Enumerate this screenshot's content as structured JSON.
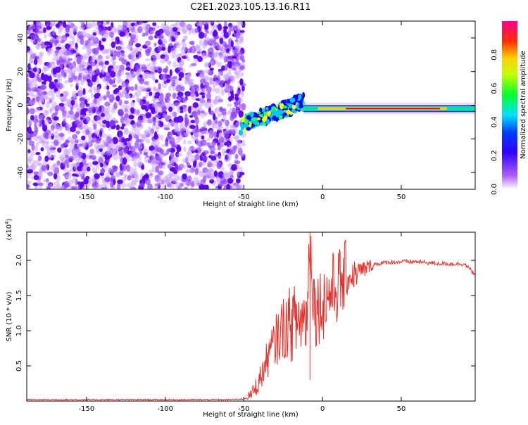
{
  "title": "C2E1.2023.105.13.16.R11",
  "colorbar": {
    "label": "Normalized spectral amplitude",
    "ticks": [
      "0.0",
      "0.2",
      "0.4",
      "0.6",
      "0.8"
    ],
    "tick_values": [
      0.0,
      0.2,
      0.4,
      0.6,
      0.8
    ],
    "range": [
      0,
      1
    ],
    "colors": [
      "#ffffff",
      "#8a00ff",
      "#0000ff",
      "#00d8ff",
      "#00ff30",
      "#ffff00",
      "#ff8000",
      "#ff0000",
      "#ff0090"
    ]
  },
  "chart_data": [
    {
      "type": "heatmap",
      "xlabel": "Height of straight line (km)",
      "ylabel": "Frequency (Hz)",
      "xlim": [
        -188,
        97
      ],
      "ylim": [
        -50,
        50
      ],
      "x_ticks": [
        "-150",
        "-100",
        "-50",
        "0",
        "50"
      ],
      "x_tick_values": [
        -150,
        -100,
        -50,
        0,
        50
      ],
      "y_ticks": [
        "-40",
        "-20",
        "0",
        "20",
        "40"
      ],
      "y_tick_values": [
        -40,
        -20,
        0,
        20,
        40
      ],
      "features": [
        {
          "region": "noise",
          "x_range": [
            -188,
            -50
          ],
          "y_range": [
            -50,
            50
          ],
          "amplitude": 0.05
        },
        {
          "region": "rising band",
          "x_start": -52,
          "x_end": -12,
          "y_start": -12,
          "y_end": 2,
          "amplitude": 0.4
        },
        {
          "region": "steady line",
          "x_start": -12,
          "x_end": 97,
          "y": -2,
          "amplitude": 0.85
        }
      ]
    },
    {
      "type": "line",
      "xlabel": "Height of straight line (km)",
      "ylabel": "SNR (10 * v/v)",
      "scale_label": "(x10",
      "scale_exp": "4",
      "scale_close": ")",
      "xlim": [
        -188,
        97
      ],
      "ylim": [
        0,
        2.4
      ],
      "x_ticks": [
        "-150",
        "-100",
        "-50",
        "0",
        "50"
      ],
      "x_tick_values": [
        -150,
        -100,
        -50,
        0,
        50
      ],
      "y_ticks": [
        "0.5",
        "1.0",
        "1.5",
        "2.0"
      ],
      "y_tick_values": [
        0.5,
        1.0,
        1.5,
        2.0
      ],
      "series": [
        {
          "color": "#e8302a",
          "x": [
            -188,
            -150,
            -100,
            -60,
            -50,
            -45,
            -40,
            -35,
            -30,
            -25,
            -20,
            -15,
            -10,
            -8,
            -5,
            0,
            5,
            10,
            15,
            20,
            25,
            30,
            35,
            40,
            50,
            60,
            70,
            80,
            90,
            97
          ],
          "y": [
            0.02,
            0.02,
            0.02,
            0.02,
            0.03,
            0.1,
            0.3,
            0.6,
            0.85,
            1.05,
            1.1,
            1.15,
            1.2,
            2.35,
            1.3,
            1.4,
            1.55,
            1.65,
            1.75,
            1.8,
            1.85,
            1.92,
            1.95,
            1.97,
            1.98,
            1.98,
            1.96,
            1.95,
            1.95,
            1.8
          ]
        }
      ]
    }
  ]
}
